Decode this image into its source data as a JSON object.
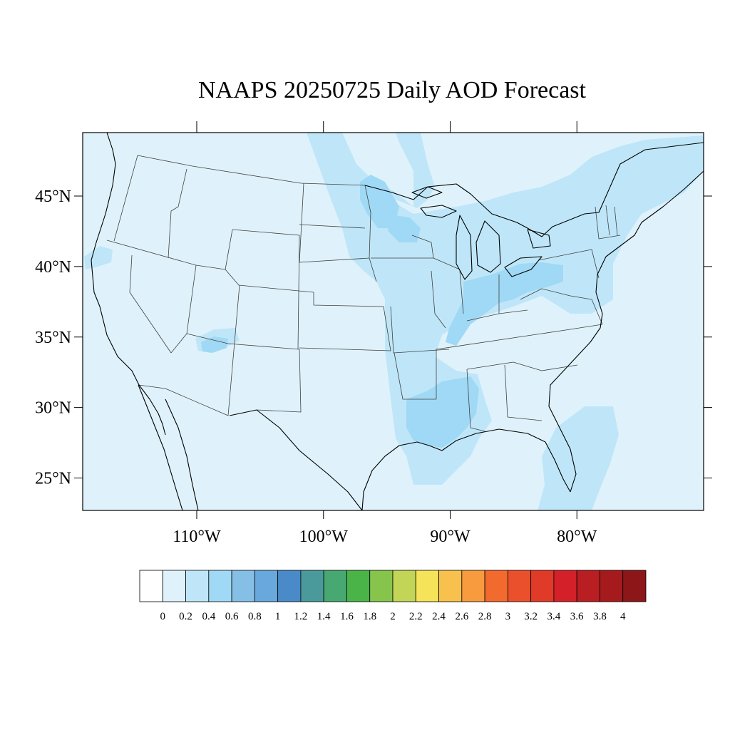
{
  "title": "NAAPS 20250725 Daily AOD Forecast",
  "map": {
    "lon_range": [
      -119,
      -70
    ],
    "lat_range": [
      22.7,
      49.5
    ],
    "lat_ticks": [
      {
        "value": 45,
        "label": "45°N"
      },
      {
        "value": 40,
        "label": "40°N"
      },
      {
        "value": 35,
        "label": "35°N"
      },
      {
        "value": 30,
        "label": "30°N"
      },
      {
        "value": 25,
        "label": "25°N"
      }
    ],
    "lon_ticks": [
      {
        "value": -110,
        "label": "110°W"
      },
      {
        "value": -100,
        "label": "100°W"
      },
      {
        "value": -90,
        "label": "90°W"
      },
      {
        "value": -80,
        "label": "80°W"
      }
    ],
    "background_color": "#dff2fb"
  },
  "colorbar": {
    "colors": [
      "#ffffff",
      "#dff2fb",
      "#bfe6f8",
      "#a0d9f5",
      "#85bfe6",
      "#68a8dc",
      "#4a8ac8",
      "#4a9a9c",
      "#48a872",
      "#4ab449",
      "#86c44c",
      "#c3d556",
      "#f5e35a",
      "#f8c14d",
      "#f79b3e",
      "#f26a2e",
      "#ea502b",
      "#e03a28",
      "#d42028",
      "#b81e22",
      "#a51a1d",
      "#8d1619"
    ],
    "labels": [
      "0",
      "0.2",
      "0.4",
      "0.6",
      "0.8",
      "1",
      "1.2",
      "1.4",
      "1.6",
      "1.8",
      "2",
      "2.2",
      "2.4",
      "2.6",
      "2.8",
      "3",
      "3.2",
      "3.4",
      "3.6",
      "3.8",
      "4"
    ]
  }
}
